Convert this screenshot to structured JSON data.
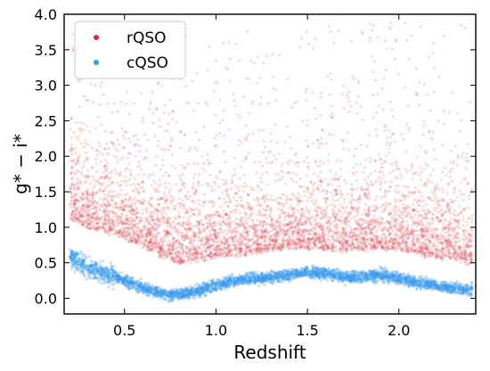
{
  "chart_data": {
    "type": "scatter",
    "title": "",
    "xlabel": "Redshift",
    "ylabel": "g* − i*",
    "xlim": [
      0.17,
      2.42
    ],
    "ylim": [
      -0.22,
      4.0
    ],
    "x_ticks": [
      0.5,
      1.0,
      1.5,
      2.0
    ],
    "x_tick_labels": [
      "0.5",
      "1.0",
      "1.5",
      "2.0"
    ],
    "y_ticks": [
      0.0,
      0.5,
      1.0,
      1.5,
      2.0,
      2.5,
      3.0,
      3.5,
      4.0
    ],
    "y_tick_labels": [
      "0.0",
      "0.5",
      "1.0",
      "1.5",
      "2.0",
      "2.5",
      "3.0",
      "3.5",
      "4.0"
    ],
    "grid": false,
    "legend_position": "top-left",
    "series": [
      {
        "name": "rQSO",
        "color": "#d62b3a",
        "x_range": [
          0.2,
          2.4
        ],
        "lower_envelope": {
          "x": [
            0.2,
            0.3,
            0.4,
            0.5,
            0.6,
            0.7,
            0.8,
            0.9,
            1.0,
            1.1,
            1.2,
            1.3,
            1.4,
            1.5,
            1.6,
            1.7,
            1.8,
            1.9,
            2.0,
            2.1,
            2.2,
            2.3,
            2.4
          ],
          "y": [
            1.15,
            1.0,
            0.95,
            0.85,
            0.75,
            0.62,
            0.5,
            0.55,
            0.6,
            0.62,
            0.65,
            0.7,
            0.72,
            0.72,
            0.7,
            0.68,
            0.7,
            0.72,
            0.7,
            0.65,
            0.58,
            0.55,
            0.5
          ]
        },
        "density_band_y": [
          0.5,
          2.3
        ],
        "outlier_max_y": 3.9
      },
      {
        "name": "cQSO",
        "color": "#3d9bf0",
        "x_range": [
          0.2,
          2.4
        ],
        "center_line": {
          "x": [
            0.2,
            0.3,
            0.4,
            0.5,
            0.6,
            0.7,
            0.8,
            0.9,
            1.0,
            1.1,
            1.2,
            1.3,
            1.4,
            1.5,
            1.6,
            1.7,
            1.8,
            1.9,
            2.0,
            2.1,
            2.2,
            2.3,
            2.4
          ],
          "y": [
            0.62,
            0.42,
            0.35,
            0.25,
            0.15,
            0.06,
            0.05,
            0.1,
            0.18,
            0.25,
            0.28,
            0.3,
            0.33,
            0.37,
            0.35,
            0.3,
            0.3,
            0.33,
            0.28,
            0.22,
            0.18,
            0.14,
            0.12
          ]
        },
        "spread": 0.12
      }
    ]
  }
}
